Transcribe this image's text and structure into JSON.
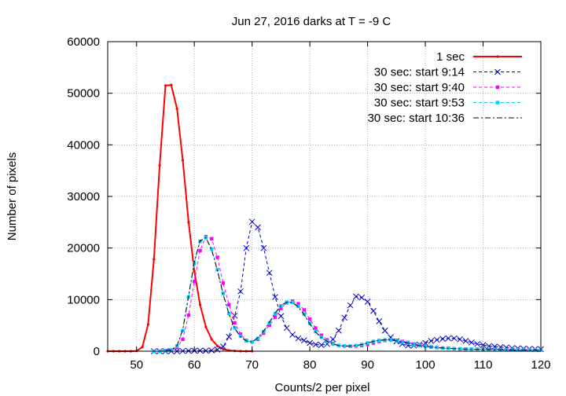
{
  "chart_data": {
    "type": "line",
    "title": "Jun 27, 2016 darks at T = -9 C",
    "xlabel": "Counts/2 per pixel",
    "ylabel": "Number of pixels",
    "xlim": [
      45,
      120
    ],
    "ylim": [
      0,
      60000
    ],
    "xticks": [
      50,
      60,
      70,
      80,
      90,
      100,
      110,
      120
    ],
    "xtick_labels": [
      "50",
      "60",
      "70",
      "80",
      "90",
      "100",
      "110",
      "120"
    ],
    "yticks": [
      0,
      10000,
      20000,
      30000,
      40000,
      50000,
      60000
    ],
    "ytick_labels": [
      "0",
      "10000",
      "20000",
      "30000",
      "40000",
      "50000",
      "60000"
    ],
    "grid": true,
    "legend_position": "top-right",
    "series": [
      {
        "name": "1 sec",
        "color": "#ff0000",
        "line": "solid",
        "marker": "dot",
        "x": [
          45,
          46,
          47,
          48,
          49,
          50,
          51,
          52,
          53,
          54,
          55,
          56,
          57,
          58,
          59,
          60,
          61,
          62,
          63,
          64,
          65,
          66,
          67,
          68,
          69,
          70
        ],
        "y": [
          0,
          0,
          0,
          0,
          0,
          50,
          800,
          5200,
          17800,
          36000,
          51500,
          51600,
          47000,
          37000,
          25000,
          15500,
          9000,
          4700,
          2300,
          1000,
          400,
          150,
          60,
          20,
          5,
          0
        ]
      },
      {
        "name": "30 sec: start 9:14",
        "color": "#0000cc",
        "line": "dashed",
        "marker": "x",
        "x": [
          53,
          54,
          55,
          56,
          57,
          58,
          59,
          60,
          61,
          62,
          63,
          64,
          65,
          66,
          67,
          68,
          69,
          70,
          71,
          72,
          73,
          74,
          75,
          76,
          77,
          78,
          79,
          80,
          81,
          82,
          83,
          84,
          85,
          86,
          87,
          88,
          89,
          90,
          91,
          92,
          93,
          94,
          95,
          96,
          97,
          98,
          99,
          100,
          101,
          102,
          103,
          104,
          105,
          106,
          107,
          108,
          109,
          110,
          111,
          112,
          113,
          114,
          115,
          116,
          117,
          118,
          119,
          120
        ],
        "y": [
          0,
          0,
          0,
          0,
          0,
          50,
          80,
          100,
          120,
          100,
          150,
          300,
          900,
          2800,
          6900,
          11600,
          20000,
          25100,
          24000,
          20000,
          15200,
          10500,
          6800,
          4500,
          3200,
          2500,
          2100,
          1600,
          1300,
          1200,
          1400,
          2300,
          4000,
          6500,
          8900,
          10600,
          10400,
          9600,
          7800,
          5800,
          4000,
          2700,
          1900,
          1400,
          1100,
          1100,
          1300,
          1600,
          2000,
          2200,
          2400,
          2500,
          2500,
          2300,
          2000,
          1700,
          1400,
          1200,
          1000,
          900,
          800,
          700,
          600,
          550,
          500,
          450,
          420,
          400
        ]
      },
      {
        "name": "30 sec: start 9:40",
        "color": "#ff00ff",
        "line": "dashed",
        "marker": "square",
        "x": [
          53,
          54,
          55,
          56,
          57,
          58,
          59,
          60,
          61,
          62,
          63,
          64,
          65,
          66,
          67,
          68,
          69,
          70,
          71,
          72,
          73,
          74,
          75,
          76,
          77,
          78,
          79,
          80,
          81,
          82,
          83,
          84,
          85,
          86,
          87,
          88,
          89,
          90,
          91,
          92,
          93,
          94,
          95,
          96,
          97,
          98,
          99,
          100,
          101,
          102,
          103,
          104,
          105,
          106,
          107,
          108,
          109,
          110,
          111,
          112,
          113,
          114,
          115,
          116,
          117,
          118,
          119,
          120
        ],
        "y": [
          0,
          0,
          100,
          200,
          700,
          2300,
          7000,
          13500,
          19500,
          22200,
          21800,
          18200,
          13200,
          9000,
          5500,
          3300,
          2100,
          1800,
          2300,
          3500,
          5000,
          6600,
          8300,
          9400,
          9700,
          9200,
          8000,
          6200,
          4500,
          3100,
          2200,
          1500,
          1100,
          1000,
          950,
          1000,
          1100,
          1300,
          1600,
          1900,
          2100,
          2200,
          2100,
          1900,
          1700,
          1400,
          1200,
          1000,
          850,
          720,
          620,
          560,
          500,
          450,
          420,
          400,
          380,
          360,
          340,
          320,
          310,
          300,
          290,
          280,
          270,
          260,
          255,
          250
        ]
      },
      {
        "name": "30 sec: start 9:53",
        "color": "#00d0ff",
        "line": "dashed",
        "marker": "square",
        "x": [
          53,
          54,
          55,
          56,
          57,
          58,
          59,
          60,
          61,
          62,
          63,
          64,
          65,
          66,
          67,
          68,
          69,
          70,
          71,
          72,
          73,
          74,
          75,
          76,
          77,
          78,
          79,
          80,
          81,
          82,
          83,
          84,
          85,
          86,
          87,
          88,
          89,
          90,
          91,
          92,
          93,
          94,
          95,
          96,
          97,
          98,
          99,
          100,
          101,
          102,
          103,
          104,
          105,
          106,
          107,
          108,
          109,
          110,
          111,
          112,
          113,
          114,
          115,
          116,
          117,
          118,
          119,
          120
        ],
        "y": [
          0,
          0,
          100,
          250,
          1000,
          4000,
          10500,
          17000,
          21300,
          22000,
          19800,
          15800,
          11200,
          7300,
          4500,
          2900,
          2000,
          1800,
          2500,
          3800,
          5500,
          7300,
          8800,
          9500,
          9500,
          8700,
          7200,
          5400,
          3800,
          2700,
          1900,
          1400,
          1100,
          1000,
          1000,
          1100,
          1300,
          1600,
          1900,
          2100,
          2200,
          2200,
          2000,
          1800,
          1600,
          1300,
          1100,
          950,
          800,
          700,
          620,
          560,
          500,
          460,
          430,
          400,
          380,
          360,
          340,
          320,
          310,
          300,
          290,
          280,
          270,
          260,
          255,
          250
        ]
      },
      {
        "name": "30 sec: start 10:36",
        "color": "#000000",
        "line": "dashdot",
        "marker": "none",
        "x": [
          53,
          54,
          55,
          56,
          57,
          58,
          59,
          60,
          61,
          62,
          63,
          64,
          65,
          66,
          67,
          68,
          69,
          70,
          71,
          72,
          73,
          74,
          75,
          76,
          77,
          78,
          79,
          80,
          81,
          82,
          83,
          84,
          85,
          86,
          87,
          88,
          89,
          90,
          91,
          92,
          93,
          94,
          95,
          96,
          97,
          98,
          99,
          100,
          101,
          102,
          103,
          104,
          105,
          106,
          107,
          108,
          109,
          110,
          111,
          112,
          113,
          114,
          115,
          116,
          117,
          118,
          119,
          120
        ],
        "y": [
          0,
          0,
          100,
          250,
          1100,
          4200,
          10800,
          17300,
          21400,
          22000,
          19700,
          15600,
          11000,
          7200,
          4400,
          2800,
          2000,
          1800,
          2600,
          3900,
          5600,
          7400,
          8900,
          9500,
          9400,
          8600,
          7100,
          5300,
          3700,
          2600,
          1900,
          1400,
          1100,
          1000,
          1000,
          1100,
          1300,
          1600,
          1900,
          2100,
          2200,
          2200,
          2000,
          1800,
          1600,
          1300,
          1100,
          950,
          800,
          700,
          620,
          560,
          500,
          460,
          430,
          400,
          380,
          360,
          340,
          320,
          310,
          300,
          290,
          280,
          270,
          260,
          255,
          250
        ]
      }
    ]
  }
}
